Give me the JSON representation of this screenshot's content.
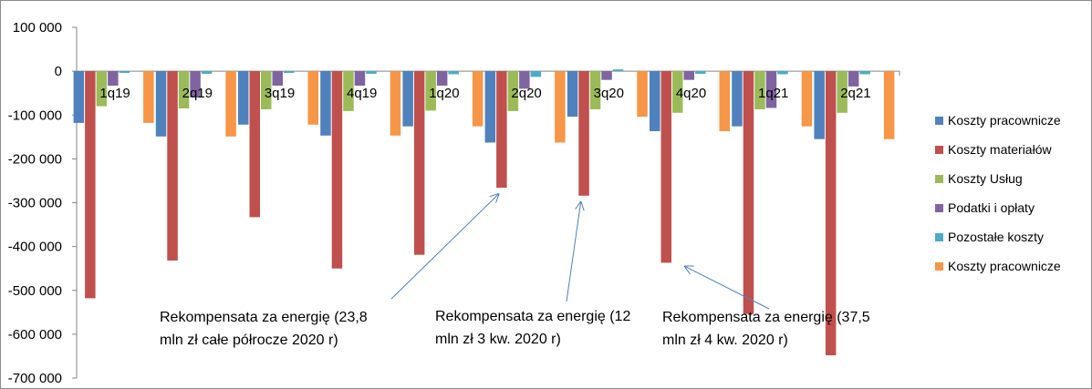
{
  "chart_data": {
    "type": "bar",
    "categories": [
      "1q19",
      "2q19",
      "3q19",
      "4q19",
      "1q20",
      "2q20",
      "3q20",
      "4q20",
      "1q21",
      "2q21"
    ],
    "ylim": [
      -700000,
      100000
    ],
    "yticks": [
      100000,
      0,
      -100000,
      -200000,
      -300000,
      -400000,
      -500000,
      -600000,
      -700000
    ],
    "ytick_labels": [
      "100 000",
      "0",
      "-100 000",
      "-200 000",
      "-300 000",
      "-400 000",
      "-500 000",
      "-600 000",
      "-700 000"
    ],
    "grid": false,
    "legend_position": "right",
    "series": [
      {
        "name": "Koszty pracownicze",
        "color": "#4f81bd",
        "values": [
          -118000,
          -149000,
          -122000,
          -147000,
          -126000,
          -163000,
          -104000,
          -137000,
          -126000,
          -155000
        ]
      },
      {
        "name": "Koszty materiałów",
        "color": "#c0504d",
        "values": [
          -518000,
          -432000,
          -333000,
          -450000,
          -419000,
          -266000,
          -284000,
          -437000,
          -554000,
          -648000
        ]
      },
      {
        "name": "Koszty Usług",
        "color": "#9bbb59",
        "values": [
          -80000,
          -85000,
          -87000,
          -91000,
          -90000,
          -91000,
          -87000,
          -95000,
          -87000,
          -95000
        ]
      },
      {
        "name": "Podatki i opłaty",
        "color": "#8064a2",
        "values": [
          -33000,
          -60000,
          -33000,
          -33000,
          -33000,
          -40000,
          -20000,
          -20000,
          -84000,
          -35000
        ]
      },
      {
        "name": "Pozostałe koszty",
        "color": "#4bacc6",
        "values": [
          -4000,
          -6000,
          -4000,
          -6000,
          -7000,
          -13000,
          4000,
          -6000,
          -7000,
          -7000
        ]
      },
      {
        "name": "Koszty pracownicze",
        "color": "#f79646",
        "values": [
          -118000,
          -149000,
          -122000,
          -147000,
          -126000,
          -163000,
          -104000,
          -137000,
          -126000,
          -155000
        ]
      }
    ],
    "annotations": [
      {
        "lines": [
          "Rekompensata za energię (23,8",
          "mln zł całe półrocze 2020 r)"
        ],
        "target_category": "2q20"
      },
      {
        "lines": [
          "Rekompensata za energię (12",
          "mln zł 3 kw. 2020 r)"
        ],
        "target_category": "3q20"
      },
      {
        "lines": [
          "Rekompensata za energię (37,5",
          "mln zł 4 kw. 2020 r)"
        ],
        "target_category": "4q20"
      }
    ]
  }
}
